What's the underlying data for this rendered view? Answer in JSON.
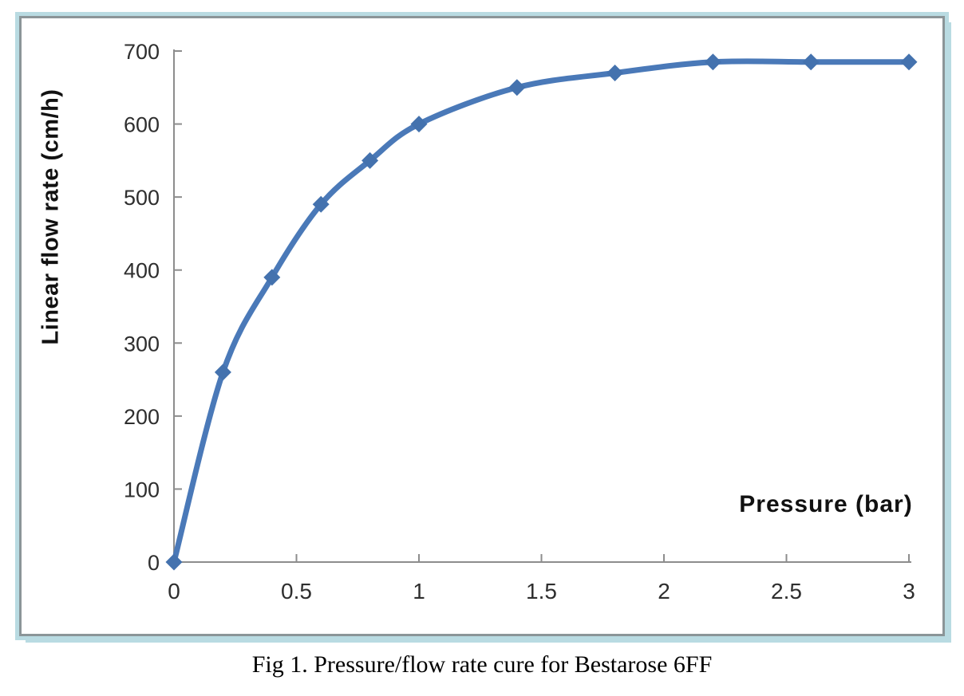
{
  "figure": {
    "caption": "Fig 1. Pressure/flow rate cure for Bestarose 6FF"
  },
  "chart_data": {
    "type": "line",
    "title": "",
    "xlabel": "Pressure (bar)",
    "ylabel": "Linear flow rate (cm/h)",
    "x": [
      0,
      0.2,
      0.4,
      0.6,
      0.8,
      1.0,
      1.4,
      1.8,
      2.2,
      2.6,
      3.0
    ],
    "series": [
      {
        "name": "Bestarose 6FF",
        "values": [
          0,
          260,
          390,
          490,
          550,
          600,
          650,
          670,
          685,
          685,
          685
        ]
      }
    ],
    "xlim": [
      0,
      3
    ],
    "ylim": [
      0,
      700
    ],
    "x_ticks": [
      0,
      0.5,
      1,
      1.5,
      2,
      2.5,
      3
    ],
    "x_tick_labels": [
      "0",
      "0.5",
      "1",
      "1.5",
      "2",
      "2.5",
      "3"
    ],
    "y_ticks": [
      0,
      100,
      200,
      300,
      400,
      500,
      600,
      700
    ],
    "y_tick_labels": [
      "0",
      "100",
      "200",
      "300",
      "400",
      "500",
      "600",
      "700"
    ],
    "grid": false,
    "legend": "none",
    "line_smooth": true,
    "marker_shape": "diamond",
    "colors": {
      "series_line": "#4a79b8",
      "series_marker": "#4472ae",
      "axis_line": "#8d8d8d",
      "tick_label": "#2e2e2e",
      "axis_title": "#111111",
      "frame_border_inner": "#8b9598",
      "frame_border_outer": "#b9dbe2",
      "plot_background": "#ffffff"
    }
  }
}
